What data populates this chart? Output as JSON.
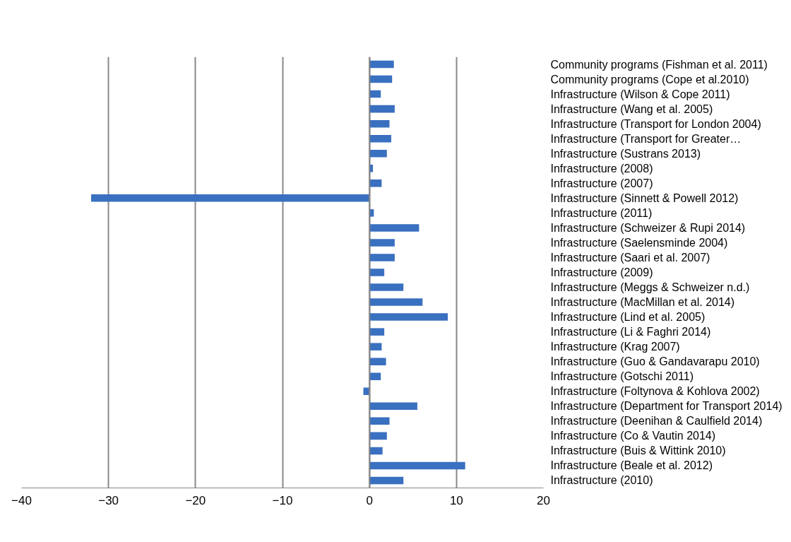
{
  "chart_data": {
    "type": "bar",
    "orientation": "horizontal",
    "categories": [
      "Community programs (Fishman et al. 2011)",
      "Community programs (Cope et al.2010)",
      "Infrastructure (Wilson & Cope 2011)",
      "Infrastructure (Wang et al. 2005)",
      "Infrastructure (Transport for London 2004)",
      "Infrastructure (Transport for Greater…",
      "Infrastructure (Sustrans 2013)",
      "Infrastructure (2008)",
      "Infrastructure (2007)",
      "Infrastructure (Sinnett & Powell 2012)",
      "Infrastructure (2011)",
      "Infrastructure (Schweizer & Rupi 2014)",
      "Infrastructure (Saelensminde 2004)",
      "Infrastructure (Saari et al. 2007)",
      "Infrastructure (2009)",
      "Infrastructure (Meggs & Schweizer n.d.)",
      "Infrastructure (MacMillan et al. 2014)",
      "Infrastructure (Lind et al. 2005)",
      "Infrastructure (Li & Faghri 2014)",
      "Infrastructure (Krag 2007)",
      "Infrastructure (Guo & Gandavarapu 2010)",
      "Infrastructure (Gotschi 2011)",
      "Infrastructure (Foltynova & Kohlova 2002)",
      "Infrastructure (Department for Transport 2014)",
      "Infrastructure (Deenihan & Caulfield 2014)",
      "Infrastructure (Co & Vautin 2014)",
      "Infrastructure (Buis & Wittink 2010)",
      "Infrastructure (Beale et al. 2012)",
      "Infrastructure (2010)"
    ],
    "values": [
      2.8,
      2.6,
      1.3,
      2.9,
      2.3,
      2.5,
      2.0,
      0.4,
      1.4,
      -32,
      0.5,
      5.7,
      2.9,
      2.9,
      1.7,
      3.9,
      6.1,
      9.0,
      1.7,
      1.4,
      1.9,
      1.3,
      -0.7,
      5.5,
      2.3,
      2.0,
      1.5,
      11.0,
      3.9
    ],
    "color": "#3a70c0",
    "xlim": [
      -40,
      20
    ],
    "xticks": [
      -40,
      -30,
      -20,
      -10,
      0,
      10,
      20
    ],
    "grid": "x"
  }
}
